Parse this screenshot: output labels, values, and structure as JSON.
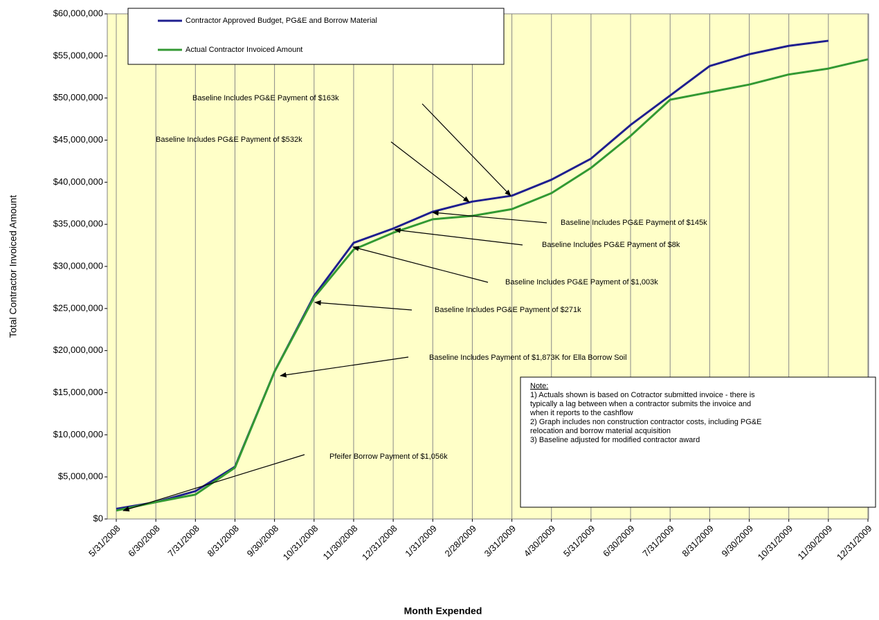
{
  "chart_data": {
    "type": "line",
    "x_label": "Month Expended",
    "y_label": "Total Contractor Invoiced Amount",
    "categories": [
      "5/31/2008",
      "6/30/2008",
      "7/31/2008",
      "8/31/2008",
      "9/30/2008",
      "10/31/2008",
      "11/30/2008",
      "12/31/2008",
      "1/31/2009",
      "2/28/2009",
      "3/31/2009",
      "4/30/2009",
      "5/31/2009",
      "6/30/2009",
      "7/31/2009",
      "8/31/2009",
      "9/30/2009",
      "10/31/2009",
      "11/30/2009",
      "12/31/2009"
    ],
    "series": [
      {
        "name": "Contractor Approved Budget, PG&E and Borrow Material",
        "color": "#1f1f8f",
        "values": [
          1200000,
          2000000,
          3300000,
          6200000,
          17500000,
          26500000,
          32800000,
          34500000,
          36500000,
          37700000,
          38400000,
          40300000,
          42800000,
          46800000,
          50300000,
          53800000,
          55200000,
          56200000,
          56800000,
          null
        ]
      },
      {
        "name": "Actual Contractor Invoiced Amount",
        "color": "#339933",
        "values": [
          1000000,
          2000000,
          2900000,
          6100000,
          17500000,
          26300000,
          32000000,
          34000000,
          35600000,
          36000000,
          36800000,
          38700000,
          41700000,
          45500000,
          49800000,
          50700000,
          51600000,
          52800000,
          53500000,
          54600000
        ]
      }
    ],
    "ylim": [
      0,
      60000000
    ],
    "yticks": [
      {
        "value": 0,
        "label": "$0"
      },
      {
        "value": 5000000,
        "label": "$5,000,000"
      },
      {
        "value": 10000000,
        "label": "$10,000,000"
      },
      {
        "value": 15000000,
        "label": "$15,000,000"
      },
      {
        "value": 20000000,
        "label": "$20,000,000"
      },
      {
        "value": 25000000,
        "label": "$25,000,000"
      },
      {
        "value": 30000000,
        "label": "$30,000,000"
      },
      {
        "value": 35000000,
        "label": "$35,000,000"
      },
      {
        "value": 40000000,
        "label": "$40,000,000"
      },
      {
        "value": 45000000,
        "label": "$45,000,000"
      },
      {
        "value": 50000000,
        "label": "$50,000,000"
      },
      {
        "value": 55000000,
        "label": "$55,000,000"
      },
      {
        "value": 60000000,
        "label": "$60,000,000"
      }
    ],
    "grid": "x",
    "legend": "top-left",
    "background": "#ffffc8",
    "annotations": [
      "Baseline Includes PG&E Payment of $163k",
      "Baseline Includes PG&E Payment of $532k",
      "Baseline Includes PG&E Payment of $145k",
      "Baseline Includes PG&E Payment of $8k",
      "Baseline Includes PG&E Payment of $1,003k",
      "Baseline Includes PG&E Payment of $271k",
      "Baseline Includes Payment of $1,873K for Ella Borrow Soil",
      "Pfeifer Borrow Payment of $1,056k"
    ],
    "note": {
      "title": "Note:",
      "lines": [
        "1) Actuals shown is based on Cotractor submitted invoice - there is",
        "typically a lag between when a contractor submits the invoice and",
        "when it reports to the cashflow",
        "2) Graph includes non construction contractor costs, including PG&E",
        "relocation and borrow material acquisition",
        "3) Baseline adjusted for modified contractor award"
      ]
    }
  }
}
